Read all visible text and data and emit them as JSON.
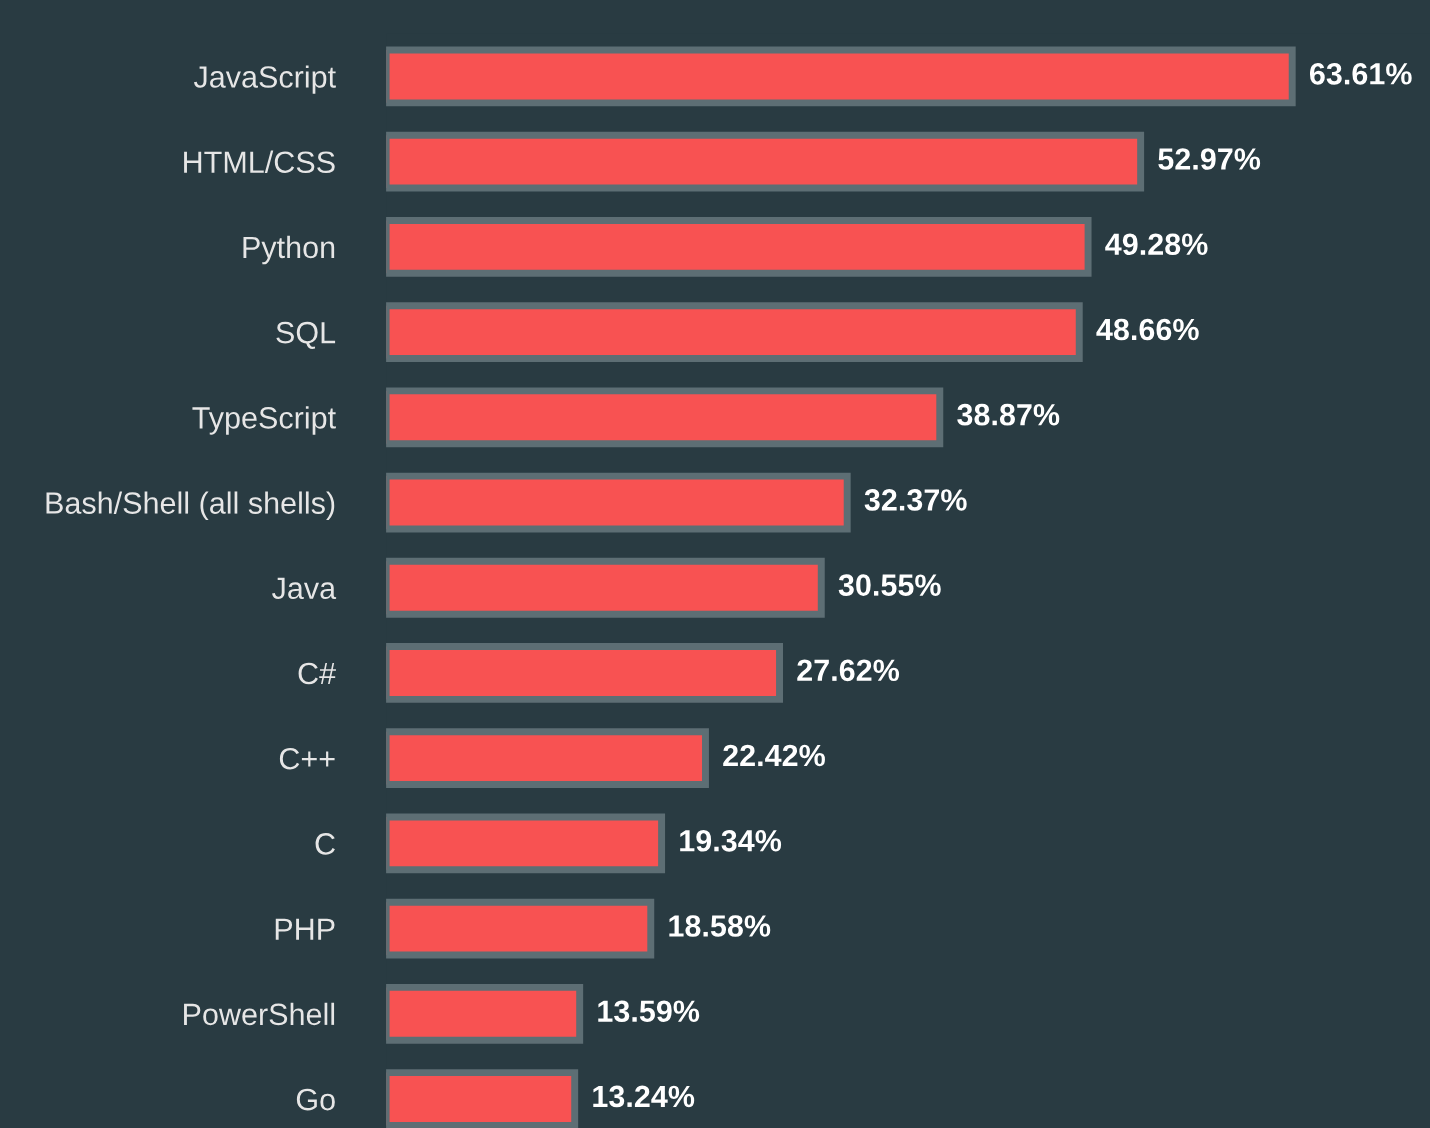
{
  "chart_data": {
    "type": "bar",
    "orientation": "horizontal",
    "categories": [
      "JavaScript",
      "HTML/CSS",
      "Python",
      "SQL",
      "TypeScript",
      "Bash/Shell (all shells)",
      "Java",
      "C#",
      "C++",
      "C",
      "PHP",
      "PowerShell",
      "Go"
    ],
    "values": [
      63.61,
      52.97,
      49.28,
      48.66,
      38.87,
      32.37,
      30.55,
      27.62,
      22.42,
      19.34,
      18.58,
      13.59,
      13.24
    ],
    "value_labels": [
      "63.61%",
      "52.97%",
      "49.28%",
      "48.66%",
      "38.87%",
      "32.37%",
      "30.55%",
      "27.62%",
      "22.42%",
      "19.34%",
      "18.58%",
      "13.59%",
      "13.24%"
    ],
    "color": "#f85252",
    "grid": false,
    "legend": false
  }
}
